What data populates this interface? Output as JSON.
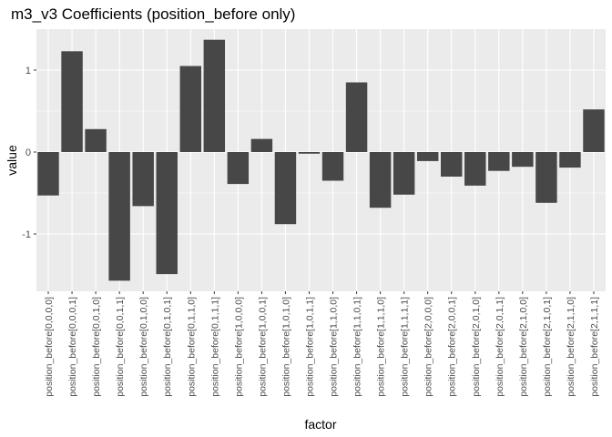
{
  "chart_data": {
    "type": "bar",
    "title": "m3_v3 Coefficients (position_before only)",
    "xlabel": "factor",
    "ylabel": "value",
    "ylim": [
      -1.7,
      1.5
    ],
    "yticks": [
      -1,
      0,
      1
    ],
    "ytick_labels": [
      "-1",
      "0",
      "1"
    ],
    "grid": true,
    "bar_color": "#474747",
    "panel_color": "#ebebeb",
    "grid_color": "#ffffff",
    "categories": [
      "position_before[0,0,0,0]",
      "position_before[0,0,0,1]",
      "position_before[0,0,1,0]",
      "position_before[0,0,1,1]",
      "position_before[0,1,0,0]",
      "position_before[0,1,0,1]",
      "position_before[0,1,1,0]",
      "position_before[0,1,1,1]",
      "position_before[1,0,0,0]",
      "position_before[1,0,0,1]",
      "position_before[1,0,1,0]",
      "position_before[1,0,1,1]",
      "position_before[1,1,0,0]",
      "position_before[1,1,0,1]",
      "position_before[1,1,1,0]",
      "position_before[1,1,1,1]",
      "position_before[2,0,0,0]",
      "position_before[2,0,0,1]",
      "position_before[2,0,1,0]",
      "position_before[2,0,1,1]",
      "position_before[2,1,0,0]",
      "position_before[2,1,0,1]",
      "position_before[2,1,1,0]",
      "position_before[2,1,1,1]"
    ],
    "values": [
      -0.53,
      1.23,
      0.28,
      -1.57,
      -0.66,
      -1.49,
      1.05,
      1.37,
      -0.39,
      0.16,
      -0.88,
      -0.02,
      -0.35,
      0.85,
      -0.68,
      -0.52,
      -0.11,
      -0.3,
      -0.41,
      -0.23,
      -0.18,
      -0.62,
      -0.19,
      0.52
    ]
  }
}
